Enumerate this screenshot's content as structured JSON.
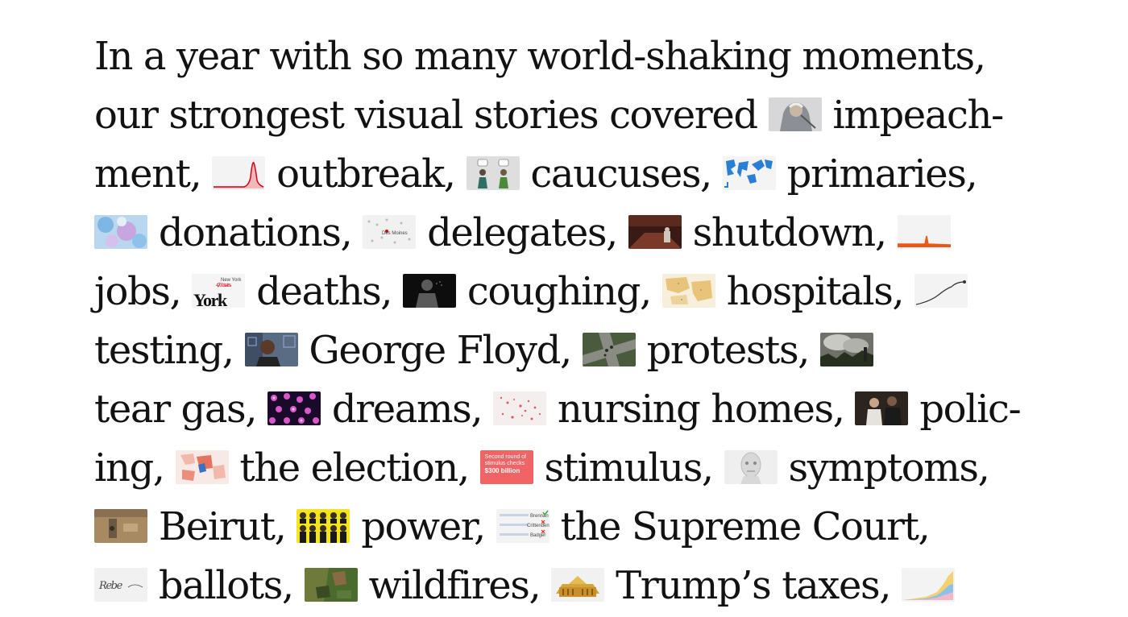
{
  "lines": [
    [
      {
        "text": "In a year with so many world-shaking moments,"
      }
    ],
    [
      {
        "text": "our strongest visual stories covered"
      },
      {
        "icon": "impeachment-sketch-icon"
      },
      {
        "text": "impeach-"
      }
    ],
    [
      {
        "text": "ment,"
      },
      {
        "icon": "outbreak-chart-icon"
      },
      {
        "text": "outbreak,"
      },
      {
        "icon": "caucuses-figures-icon"
      },
      {
        "text": "caucuses,"
      },
      {
        "icon": "primaries-map-icon"
      },
      {
        "text": "primaries,"
      }
    ],
    [
      {
        "icon": "donations-map-icon"
      },
      {
        "text": "donations,"
      },
      {
        "icon": "delegates-map-icon"
      },
      {
        "text": "delegates,"
      },
      {
        "icon": "shutdown-photo-icon"
      },
      {
        "text": "shutdown,"
      },
      {
        "icon": "jobs-chart-icon"
      }
    ],
    [
      {
        "text": "jobs,"
      },
      {
        "icon": "deaths-newyork-icon"
      },
      {
        "text": "deaths,"
      },
      {
        "icon": "coughing-figure-icon"
      },
      {
        "text": "coughing,"
      },
      {
        "icon": "hospitals-map-icon"
      },
      {
        "text": "hospitals,"
      },
      {
        "icon": "testing-chart-icon"
      }
    ],
    [
      {
        "text": "testing,"
      },
      {
        "icon": "george-floyd-photo-icon"
      },
      {
        "text": "George Floyd,"
      },
      {
        "icon": "protests-aerial-icon"
      },
      {
        "text": "protests,"
      },
      {
        "icon": "tear-gas-photo-icon"
      }
    ],
    [
      {
        "text": "tear gas,"
      },
      {
        "icon": "dreams-pattern-icon"
      },
      {
        "text": "dreams,"
      },
      {
        "icon": "nursing-homes-dots-icon"
      },
      {
        "text": "nursing homes,"
      },
      {
        "icon": "policing-photo-icon"
      },
      {
        "text": "polic-"
      }
    ],
    [
      {
        "text": "ing,"
      },
      {
        "icon": "election-map-icon"
      },
      {
        "text": "the election,"
      },
      {
        "icon": "stimulus-card-icon"
      },
      {
        "text": "stimulus,"
      },
      {
        "icon": "symptoms-figure-icon"
      },
      {
        "text": "symptoms,"
      }
    ],
    [
      {
        "icon": "beirut-satellite-icon"
      },
      {
        "text": "Beirut,"
      },
      {
        "icon": "power-portraits-icon"
      },
      {
        "text": "power,"
      },
      {
        "icon": "supreme-court-ballot-icon"
      },
      {
        "text": "the Supreme Court,"
      }
    ],
    [
      {
        "icon": "ballots-signature-icon"
      },
      {
        "text": "ballots,"
      },
      {
        "icon": "wildfires-satellite-icon"
      },
      {
        "text": "wildfires,"
      },
      {
        "icon": "trump-taxes-building-icon"
      },
      {
        "text": "Trump’s taxes,"
      },
      {
        "icon": "taxes-area-chart-icon"
      }
    ]
  ],
  "thumb_text": {
    "delegates": "Des Moines",
    "deaths_small": "New York",
    "deaths_count": "4,700 deaths",
    "deaths_big": "York",
    "stimulus_line1": "Second round of",
    "stimulus_line2": "stimulus checks",
    "stimulus_amount": "$300 billion",
    "court_names": [
      "Brennan",
      "Crittenden",
      "Badger"
    ],
    "ballot_signature": "Rebe"
  },
  "colors": {
    "text": "#121212",
    "chart_red": "#d0021b",
    "chart_orange": "#e8591a",
    "stimulus_bg": "#f06466",
    "court_check": "#3aa544",
    "court_x": "#d93025",
    "power_bg": "#f3e41b"
  }
}
